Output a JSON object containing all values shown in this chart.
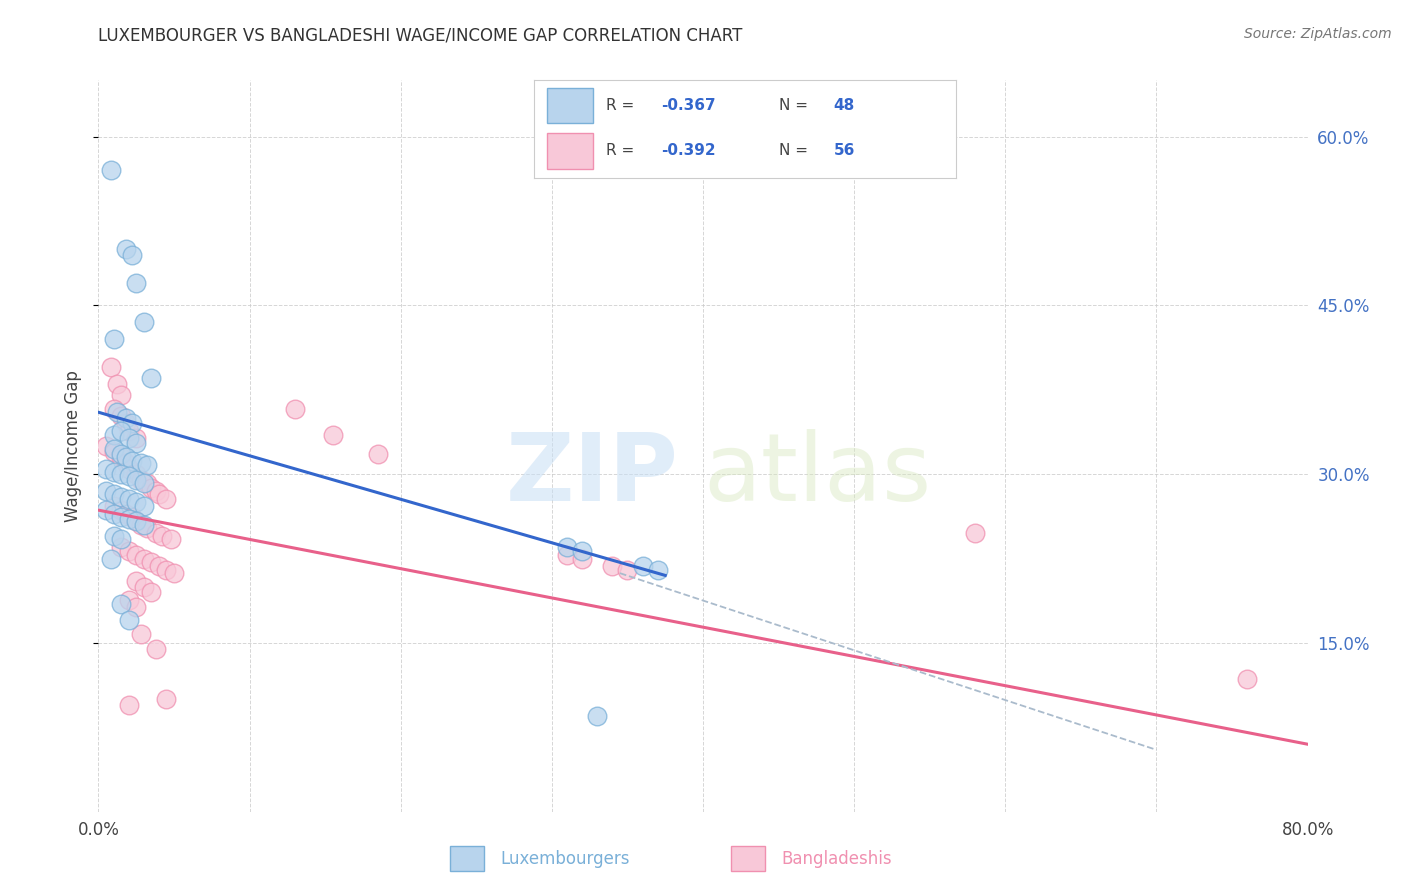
{
  "title": "LUXEMBOURGER VS BANGLADESHI WAGE/INCOME GAP CORRELATION CHART",
  "source": "Source: ZipAtlas.com",
  "ylabel": "Wage/Income Gap",
  "x_min": 0.0,
  "x_max": 0.8,
  "y_min": 0.0,
  "y_max": 0.65,
  "y_ticks_right": [
    0.15,
    0.3,
    0.45,
    0.6
  ],
  "y_tick_labels_right": [
    "15.0%",
    "30.0%",
    "45.0%",
    "60.0%"
  ],
  "watermark_zip": "ZIP",
  "watermark_atlas": "atlas",
  "lux_color_edge": "#7ab0d8",
  "lux_color_fill": "#b8d4ed",
  "ban_color_edge": "#f090b0",
  "ban_color_fill": "#f8c8d8",
  "blue_line_color": "#3366cc",
  "pink_line_color": "#e8608a",
  "dashed_line_color": "#aabbcc",
  "lux_r": "-0.367",
  "lux_n": "48",
  "ban_r": "-0.392",
  "ban_n": "56",
  "lux_label": "Luxembourgers",
  "ban_label": "Bangladeshis",
  "lux_scatter": [
    [
      0.008,
      0.57
    ],
    [
      0.018,
      0.5
    ],
    [
      0.022,
      0.495
    ],
    [
      0.025,
      0.47
    ],
    [
      0.03,
      0.435
    ],
    [
      0.01,
      0.42
    ],
    [
      0.035,
      0.385
    ],
    [
      0.012,
      0.355
    ],
    [
      0.018,
      0.35
    ],
    [
      0.022,
      0.345
    ],
    [
      0.01,
      0.335
    ],
    [
      0.015,
      0.338
    ],
    [
      0.02,
      0.332
    ],
    [
      0.025,
      0.328
    ],
    [
      0.01,
      0.322
    ],
    [
      0.015,
      0.318
    ],
    [
      0.018,
      0.315
    ],
    [
      0.022,
      0.312
    ],
    [
      0.028,
      0.31
    ],
    [
      0.032,
      0.308
    ],
    [
      0.005,
      0.305
    ],
    [
      0.01,
      0.302
    ],
    [
      0.015,
      0.3
    ],
    [
      0.02,
      0.298
    ],
    [
      0.025,
      0.295
    ],
    [
      0.03,
      0.292
    ],
    [
      0.005,
      0.285
    ],
    [
      0.01,
      0.282
    ],
    [
      0.015,
      0.28
    ],
    [
      0.02,
      0.278
    ],
    [
      0.025,
      0.275
    ],
    [
      0.03,
      0.272
    ],
    [
      0.005,
      0.268
    ],
    [
      0.01,
      0.265
    ],
    [
      0.015,
      0.262
    ],
    [
      0.02,
      0.26
    ],
    [
      0.025,
      0.258
    ],
    [
      0.03,
      0.255
    ],
    [
      0.01,
      0.245
    ],
    [
      0.015,
      0.242
    ],
    [
      0.008,
      0.225
    ],
    [
      0.015,
      0.185
    ],
    [
      0.02,
      0.17
    ],
    [
      0.31,
      0.235
    ],
    [
      0.32,
      0.232
    ],
    [
      0.36,
      0.218
    ],
    [
      0.37,
      0.215
    ],
    [
      0.33,
      0.085
    ]
  ],
  "ban_scatter": [
    [
      0.008,
      0.395
    ],
    [
      0.012,
      0.38
    ],
    [
      0.015,
      0.37
    ],
    [
      0.01,
      0.358
    ],
    [
      0.015,
      0.352
    ],
    [
      0.018,
      0.345
    ],
    [
      0.02,
      0.338
    ],
    [
      0.025,
      0.332
    ],
    [
      0.005,
      0.325
    ],
    [
      0.01,
      0.32
    ],
    [
      0.015,
      0.315
    ],
    [
      0.018,
      0.31
    ],
    [
      0.02,
      0.305
    ],
    [
      0.025,
      0.3
    ],
    [
      0.028,
      0.295
    ],
    [
      0.032,
      0.292
    ],
    [
      0.035,
      0.288
    ],
    [
      0.038,
      0.285
    ],
    [
      0.04,
      0.282
    ],
    [
      0.045,
      0.278
    ],
    [
      0.01,
      0.272
    ],
    [
      0.015,
      0.268
    ],
    [
      0.018,
      0.265
    ],
    [
      0.022,
      0.262
    ],
    [
      0.025,
      0.258
    ],
    [
      0.028,
      0.255
    ],
    [
      0.032,
      0.252
    ],
    [
      0.038,
      0.248
    ],
    [
      0.042,
      0.245
    ],
    [
      0.048,
      0.242
    ],
    [
      0.015,
      0.235
    ],
    [
      0.02,
      0.232
    ],
    [
      0.025,
      0.228
    ],
    [
      0.03,
      0.225
    ],
    [
      0.035,
      0.222
    ],
    [
      0.04,
      0.218
    ],
    [
      0.045,
      0.215
    ],
    [
      0.05,
      0.212
    ],
    [
      0.025,
      0.205
    ],
    [
      0.03,
      0.2
    ],
    [
      0.035,
      0.195
    ],
    [
      0.02,
      0.188
    ],
    [
      0.025,
      0.182
    ],
    [
      0.13,
      0.358
    ],
    [
      0.155,
      0.335
    ],
    [
      0.185,
      0.318
    ],
    [
      0.31,
      0.228
    ],
    [
      0.32,
      0.225
    ],
    [
      0.34,
      0.218
    ],
    [
      0.35,
      0.215
    ],
    [
      0.58,
      0.248
    ],
    [
      0.76,
      0.118
    ],
    [
      0.028,
      0.158
    ],
    [
      0.038,
      0.145
    ],
    [
      0.045,
      0.1
    ],
    [
      0.02,
      0.095
    ]
  ],
  "blue_line": {
    "x0": 0.0,
    "y0": 0.355,
    "x1": 0.375,
    "y1": 0.21
  },
  "pink_line": {
    "x0": 0.0,
    "y0": 0.268,
    "x1": 0.8,
    "y1": 0.06
  },
  "dashed_line": {
    "x0": 0.345,
    "y0": 0.212,
    "x1": 0.7,
    "y1": 0.055
  }
}
